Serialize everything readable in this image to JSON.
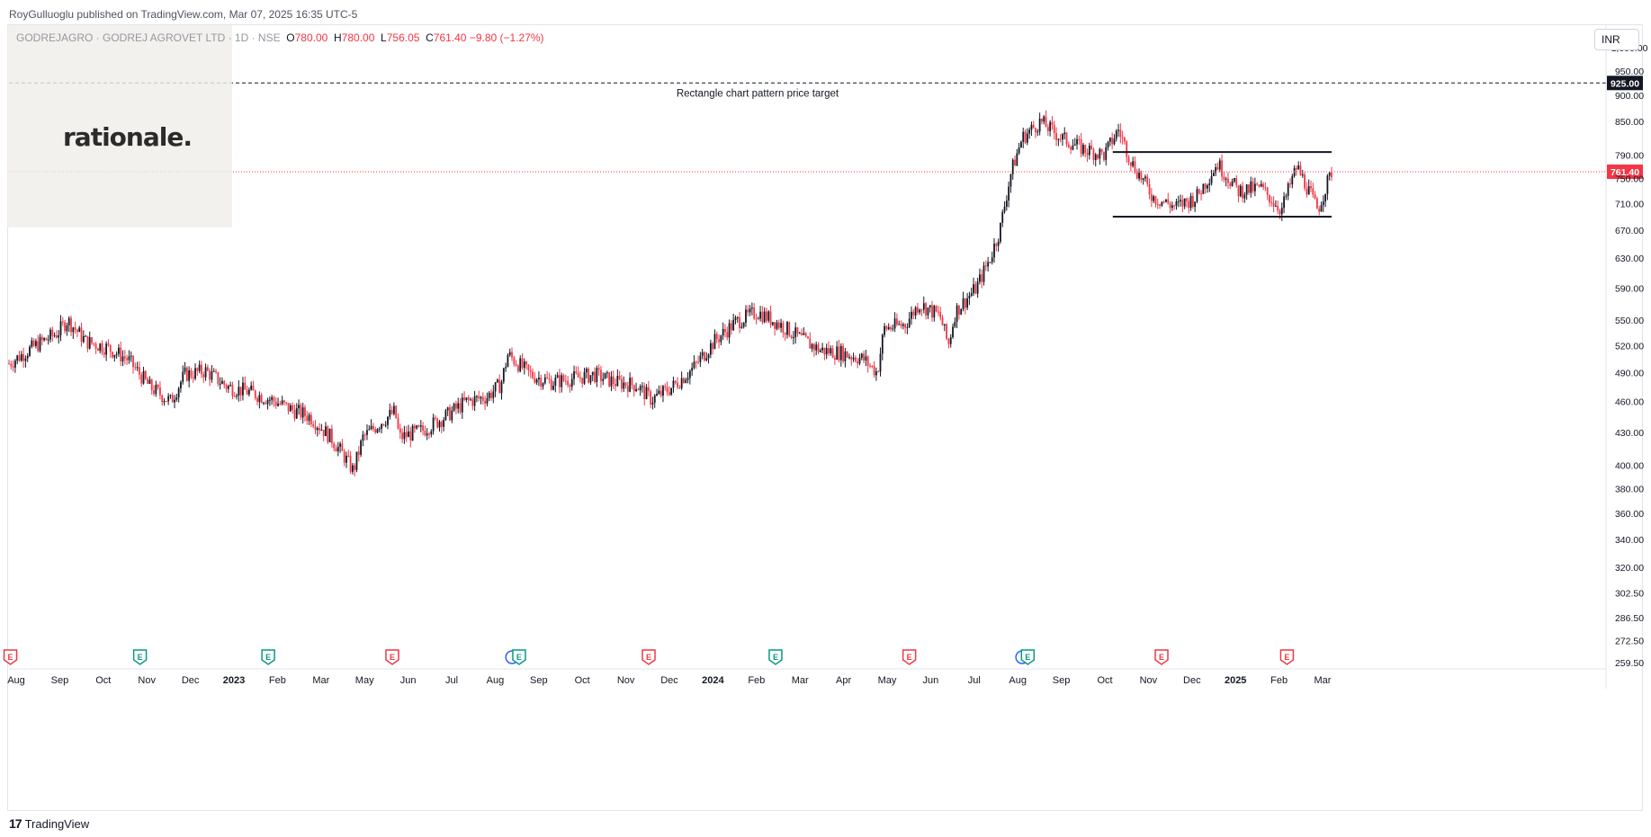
{
  "header": {
    "published_by": "RoyGulluoglu published on TradingView.com, Mar 07, 2025 16:35 UTC-5",
    "symbol": "GODREJAGRO · GODREJ AGROVET LTD · 1D · NSE",
    "open_label": "O",
    "open": "780.00",
    "high_label": "H",
    "high": "780.00",
    "low_label": "L",
    "low": "756.05",
    "close_label": "C",
    "close": "761.40",
    "change": "−9.80 (−1.27%)"
  },
  "logo": {
    "text": "rationale."
  },
  "currency": "INR",
  "footer": {
    "brand": "TradingView",
    "brand_mark": "17"
  },
  "colors": {
    "up": "#131722",
    "down": "#f23645",
    "price_line": "#f23645",
    "earnings_red": "#f23645",
    "earnings_green": "#089981",
    "dividend_blue": "#2962ff"
  },
  "chart_data": {
    "type": "candlestick",
    "scale": "log",
    "ylim": [
      256,
      1050
    ],
    "y_ticks": [
      "1,000.00",
      "950.00",
      "900.00",
      "850.00",
      "790.00",
      "750.00",
      "710.00",
      "670.00",
      "630.00",
      "590.00",
      "550.00",
      "520.00",
      "490.00",
      "460.00",
      "430.00",
      "400.00",
      "380.00",
      "360.00",
      "340.00",
      "320.00",
      "302.50",
      "286.50",
      "272.50",
      "259.50"
    ],
    "x_ticks": [
      "Aug",
      "Sep",
      "Oct",
      "Nov",
      "Dec",
      "2023",
      "Feb",
      "Mar",
      "May",
      "Jun",
      "Jul",
      "Aug",
      "Sep",
      "Oct",
      "Nov",
      "Dec",
      "2024",
      "Feb",
      "Mar",
      "Apr",
      "May",
      "Jun",
      "Jul",
      "Aug",
      "Sep",
      "Oct",
      "Nov",
      "Dec",
      "2025",
      "Feb",
      "Mar"
    ],
    "x_range": [
      "2022-08-01",
      "2025-03-07"
    ],
    "price_path": [
      [
        "2022-08-01",
        500
      ],
      [
        "2022-08-20",
        520
      ],
      [
        "2022-09-05",
        535
      ],
      [
        "2022-09-12",
        550
      ],
      [
        "2022-09-25",
        525
      ],
      [
        "2022-10-10",
        518
      ],
      [
        "2022-10-25",
        505
      ],
      [
        "2022-11-10",
        475
      ],
      [
        "2022-11-25",
        460
      ],
      [
        "2022-12-05",
        488
      ],
      [
        "2022-12-20",
        492
      ],
      [
        "2023-01-05",
        475
      ],
      [
        "2023-01-20",
        470
      ],
      [
        "2023-02-05",
        462
      ],
      [
        "2023-02-20",
        452
      ],
      [
        "2023-03-05",
        445
      ],
      [
        "2023-03-20",
        425
      ],
      [
        "2023-03-31",
        405
      ],
      [
        "2023-04-05",
        395
      ],
      [
        "2023-04-12",
        425
      ],
      [
        "2023-04-25",
        440
      ],
      [
        "2023-05-05",
        450
      ],
      [
        "2023-05-08",
        425
      ],
      [
        "2023-05-25",
        432
      ],
      [
        "2023-06-10",
        445
      ],
      [
        "2023-06-25",
        460
      ],
      [
        "2023-07-10",
        465
      ],
      [
        "2023-07-20",
        478
      ],
      [
        "2023-07-25",
        510
      ],
      [
        "2023-08-10",
        488
      ],
      [
        "2023-08-25",
        480
      ],
      [
        "2023-09-10",
        484
      ],
      [
        "2023-09-25",
        488
      ],
      [
        "2023-10-10",
        480
      ],
      [
        "2023-10-25",
        477
      ],
      [
        "2023-11-05",
        462
      ],
      [
        "2023-11-20",
        475
      ],
      [
        "2023-12-05",
        495
      ],
      [
        "2023-12-20",
        525
      ],
      [
        "2024-01-05",
        548
      ],
      [
        "2024-01-20",
        560
      ],
      [
        "2024-02-05",
        545
      ],
      [
        "2024-02-20",
        528
      ],
      [
        "2024-03-05",
        515
      ],
      [
        "2024-03-20",
        512
      ],
      [
        "2024-04-05",
        505
      ],
      [
        "2024-04-15",
        490
      ],
      [
        "2024-04-20",
        540
      ],
      [
        "2024-05-05",
        545
      ],
      [
        "2024-05-15",
        570
      ],
      [
        "2024-05-30",
        555
      ],
      [
        "2024-06-05",
        520
      ],
      [
        "2024-06-10",
        560
      ],
      [
        "2024-06-25",
        590
      ],
      [
        "2024-07-05",
        630
      ],
      [
        "2024-07-12",
        670
      ],
      [
        "2024-07-20",
        760
      ],
      [
        "2024-07-28",
        820
      ],
      [
        "2024-08-10",
        850
      ],
      [
        "2024-08-25",
        820
      ],
      [
        "2024-09-10",
        800
      ],
      [
        "2024-09-25",
        790
      ],
      [
        "2024-10-05",
        835
      ],
      [
        "2024-10-15",
        775
      ],
      [
        "2024-10-30",
        720
      ],
      [
        "2024-11-15",
        705
      ],
      [
        "2024-11-30",
        720
      ],
      [
        "2024-12-15",
        775
      ],
      [
        "2024-12-30",
        730
      ],
      [
        "2025-01-15",
        735
      ],
      [
        "2025-01-30",
        700
      ],
      [
        "2025-02-10",
        770
      ],
      [
        "2025-02-25",
        700
      ],
      [
        "2025-03-07",
        761.4
      ]
    ],
    "current_price": 761.4,
    "current_price_label": "761.40",
    "annotations": [
      {
        "type": "horizontal_line",
        "style": "dashed",
        "price": 925.0,
        "label": "925.00",
        "text": "Rectangle chart pattern price target"
      },
      {
        "type": "rectangle_top",
        "price": 795,
        "from": "2024-10-01",
        "to": "2025-03-07"
      },
      {
        "type": "rectangle_bottom",
        "price": 690,
        "from": "2024-10-01",
        "to": "2025-03-07"
      }
    ],
    "events": [
      {
        "date": "2022-08-02",
        "type": "E",
        "color": "red"
      },
      {
        "date": "2022-11-03",
        "type": "E",
        "color": "green"
      },
      {
        "date": "2023-02-03",
        "type": "E",
        "color": "green"
      },
      {
        "date": "2023-05-03",
        "type": "E",
        "color": "red"
      },
      {
        "date": "2023-07-28",
        "type": "D",
        "color": "blue"
      },
      {
        "date": "2023-08-02",
        "type": "E",
        "color": "green"
      },
      {
        "date": "2023-11-03",
        "type": "E",
        "color": "red"
      },
      {
        "date": "2024-02-02",
        "type": "E",
        "color": "green"
      },
      {
        "date": "2024-05-08",
        "type": "E",
        "color": "red"
      },
      {
        "date": "2024-07-28",
        "type": "D",
        "color": "blue"
      },
      {
        "date": "2024-08-01",
        "type": "E",
        "color": "green"
      },
      {
        "date": "2024-11-05",
        "type": "E",
        "color": "red"
      },
      {
        "date": "2025-02-03",
        "type": "E",
        "color": "red"
      }
    ]
  }
}
